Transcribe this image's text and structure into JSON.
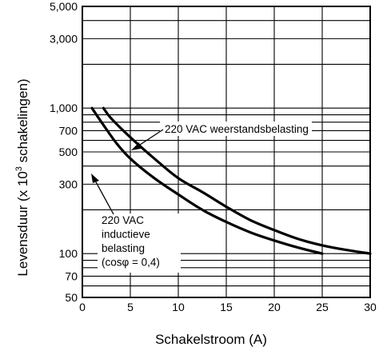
{
  "chart_data": {
    "type": "line",
    "xlabel": "Schakelstroom (A)",
    "ylabel_main": "Levensduur (x 10",
    "ylabel_exp": "3",
    "ylabel_tail": " schakelingen)",
    "xlim": [
      0,
      30
    ],
    "ylim": [
      50,
      5000
    ],
    "yscale": "log",
    "grid": true,
    "x_ticks": [
      0,
      5,
      10,
      15,
      20,
      25,
      30
    ],
    "x_tick_labels": [
      "0",
      "5",
      "10",
      "15",
      "20",
      "25",
      "30"
    ],
    "y_ticks": [
      50,
      70,
      100,
      300,
      500,
      700,
      1000,
      3000,
      5000
    ],
    "y_tick_labels": [
      "50",
      "70",
      "100",
      "300",
      "500",
      "700",
      "1,000",
      "3,000",
      "5,000"
    ],
    "series": [
      {
        "name": "220 VAC weerstandsbelasting",
        "points": [
          [
            2.2,
            1000
          ],
          [
            3,
            850
          ],
          [
            5,
            630
          ],
          [
            7.5,
            450
          ],
          [
            10,
            330
          ],
          [
            12.5,
            265
          ],
          [
            15,
            210
          ],
          [
            17.5,
            170
          ],
          [
            20,
            145
          ],
          [
            22.5,
            126
          ],
          [
            25,
            114
          ],
          [
            27.5,
            106
          ],
          [
            30,
            100
          ]
        ]
      },
      {
        "name": "220 VAC inductieve belasting (cosφ = 0,4)",
        "points": [
          [
            1,
            1000
          ],
          [
            2,
            800
          ],
          [
            3.5,
            580
          ],
          [
            5,
            450
          ],
          [
            7.5,
            330
          ],
          [
            10,
            255
          ],
          [
            12.5,
            200
          ],
          [
            15,
            165
          ],
          [
            17.5,
            140
          ],
          [
            20,
            123
          ],
          [
            22.5,
            110
          ],
          [
            25,
            100
          ]
        ]
      }
    ],
    "annotations": [
      {
        "id": "resistive",
        "lines": [
          "220 VAC weerstandsbelasting"
        ]
      },
      {
        "id": "inductive",
        "lines": [
          "220 VAC",
          "inductieve",
          "belasting",
          "(cosφ = 0,4)"
        ]
      }
    ]
  }
}
